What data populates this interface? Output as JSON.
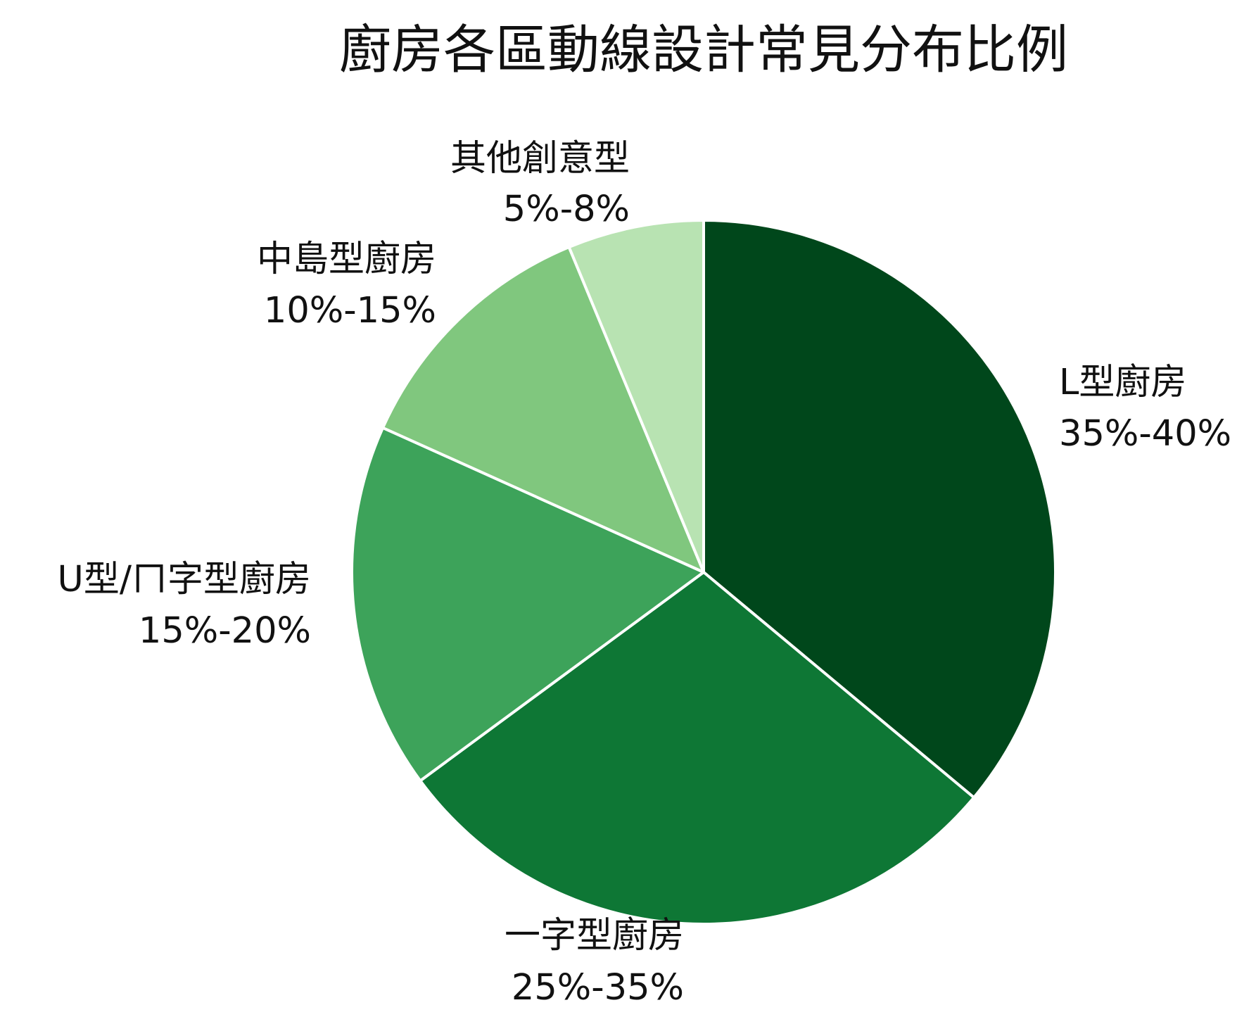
{
  "chart_data": {
    "type": "pie",
    "title": "廚房各區動線設計常見分布比例",
    "start_angle_deg": 90,
    "direction": "clockwise",
    "colors": [
      "#00471b",
      "#0e7735",
      "#3da35a",
      "#80c77e",
      "#b8e3b2"
    ],
    "slice_edge_color": "#ffffff",
    "slices": [
      {
        "name": "L型廚房",
        "range": "35%-40%",
        "value": 37.5
      },
      {
        "name": "一字型廚房",
        "range": "25%-35%",
        "value": 30
      },
      {
        "name": "U型/ㄇ字型廚房",
        "range": "15%-20%",
        "value": 17.5
      },
      {
        "name": "中島型廚房",
        "range": "10%-15%",
        "value": 12.5
      },
      {
        "name": "其他創意型",
        "range": "5%-8%",
        "value": 6.5
      }
    ]
  }
}
